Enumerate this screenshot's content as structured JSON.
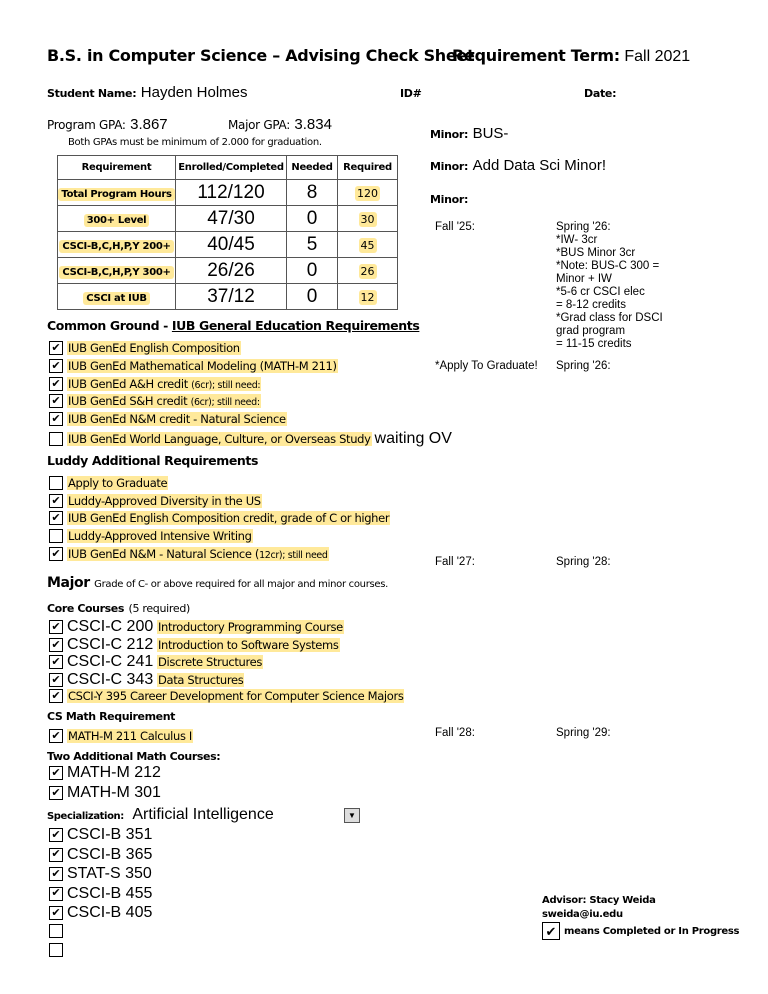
{
  "header": {
    "title": "B.S. in Computer Science – Advising Check Sheet",
    "term_label": "Requirement Term:",
    "term_value": "Fall 2021"
  },
  "student": {
    "name_label": "Student Name:",
    "name": "Hayden Holmes",
    "id_label": "ID#",
    "date_label": "Date:",
    "program_gpa_label": "Program GPA:",
    "program_gpa": "3.867",
    "major_gpa_label": "Major GPA:",
    "major_gpa": "3.834",
    "gpa_note": "Both GPAs must be minimum of 2.000 for graduation."
  },
  "minors": [
    {
      "label": "Minor:",
      "value": "BUS-"
    },
    {
      "label": "Minor:",
      "value": "Add Data Sci Minor!"
    },
    {
      "label": "Minor:",
      "value": ""
    }
  ],
  "table": {
    "headers": [
      "Requirement",
      "Enrolled/Completed",
      "Needed",
      "Required"
    ],
    "rows": [
      [
        "Total Program Hours",
        "112/120",
        "8",
        "120"
      ],
      [
        "300+ Level",
        "47/30",
        "0",
        "30"
      ],
      [
        "CSCI-B,C,H,P,Y 200+",
        "40/45",
        "5",
        "45"
      ],
      [
        "CSCI-B,C,H,P,Y 300+",
        "26/26",
        "0",
        "26"
      ],
      [
        "CSCI at IUB",
        "37/12",
        "0",
        "12"
      ]
    ]
  },
  "common_ground": {
    "title_prefix": "Common Ground - ",
    "title_link": "IUB General Education Requirements",
    "items": [
      {
        "label": "IUB GenEd English Composition",
        "small": "",
        "checked": true,
        "extra": ""
      },
      {
        "label": "IUB GenEd Mathematical Modeling (MATH-M 211)",
        "small": "",
        "checked": true,
        "extra": ""
      },
      {
        "label": "IUB GenEd A&H credit ",
        "small": "(6cr); still need:",
        "checked": true,
        "extra": ""
      },
      {
        "label": "IUB GenEd S&H credit ",
        "small": "(6cr); still need:",
        "checked": true,
        "extra": ""
      },
      {
        "label": "IUB GenEd N&M credit - Natural Science",
        "small": "",
        "checked": true,
        "extra": ""
      },
      {
        "label": "IUB GenEd World Language, Culture, or Overseas Study",
        "small": "",
        "checked": false,
        "extra": "waiting OV"
      }
    ]
  },
  "luddy": {
    "title": "Luddy Additional Requirements",
    "items": [
      {
        "label": "Apply to Graduate",
        "small": "",
        "checked": false
      },
      {
        "label": "Luddy-Approved Diversity in the US",
        "small": "",
        "checked": true
      },
      {
        "label": "IUB GenEd English Composition credit, grade of C or higher",
        "small": "",
        "checked": true
      },
      {
        "label": "Luddy-Approved Intensive Writing",
        "small": "",
        "checked": false
      },
      {
        "label": "IUB GenEd N&M - Natural Science (",
        "small": "12cr); still need",
        "checked": true
      }
    ]
  },
  "major": {
    "title": "Major",
    "note": "Grade of C- or above required for all major and minor courses."
  },
  "core": {
    "title": "Core Courses",
    "note": "(5 required)",
    "items": [
      {
        "code": "CSCI-C 200",
        "desc": "Introductory Programming Course",
        "checked": true
      },
      {
        "code": "CSCI-C 212",
        "desc": "Introduction to Software Systems",
        "checked": true
      },
      {
        "code": "CSCI-C 241",
        "desc": "Discrete Structures",
        "checked": true
      },
      {
        "code": "CSCI-C 343",
        "desc": "Data Structures",
        "checked": true
      }
    ],
    "y395": {
      "desc": "CSCI-Y 395 Career Development for Computer Science Majors",
      "checked": true
    }
  },
  "math": {
    "title": "CS Math Requirement",
    "item": "MATH-M 211 Calculus I",
    "additional_title": "Two Additional Math Courses:",
    "additional": [
      "MATH-M 212",
      "MATH-M 301"
    ]
  },
  "specialization": {
    "label": "Specialization:",
    "value": "Artificial Intelligence",
    "items": [
      {
        "code": "CSCI-B 351",
        "checked": true
      },
      {
        "code": "CSCI-B 365",
        "checked": true
      },
      {
        "code": "STAT-S 350",
        "checked": true
      },
      {
        "code": "CSCI-B 455",
        "checked": true
      },
      {
        "code": "CSCI-B 405",
        "checked": true
      },
      {
        "code": "",
        "checked": false
      },
      {
        "code": "",
        "checked": false
      }
    ]
  },
  "plan": {
    "fall25": "Fall '25:",
    "spring26": "Spring '26:\n*IW- 3cr\n*BUS Minor 3cr\n*Note: BUS-C 300 =\nMinor + IW\n*5-6 cr CSCI elec\n= 8-12 credits\n*Grad class for DSCI\ngrad program\n= 11-15 credits",
    "apply": "*Apply To Graduate!",
    "spring26b": "Spring '26:",
    "fall27": "Fall '27:",
    "spring28": "Spring '28:",
    "fall28": "Fall '28:",
    "spring29": "Spring '29:"
  },
  "advisor": {
    "name": "Advisor: Stacy Weida",
    "email": "sweida@iu.edu",
    "legend": "means Completed or In Progress"
  },
  "colors": {
    "highlight": "#ffe99a"
  }
}
